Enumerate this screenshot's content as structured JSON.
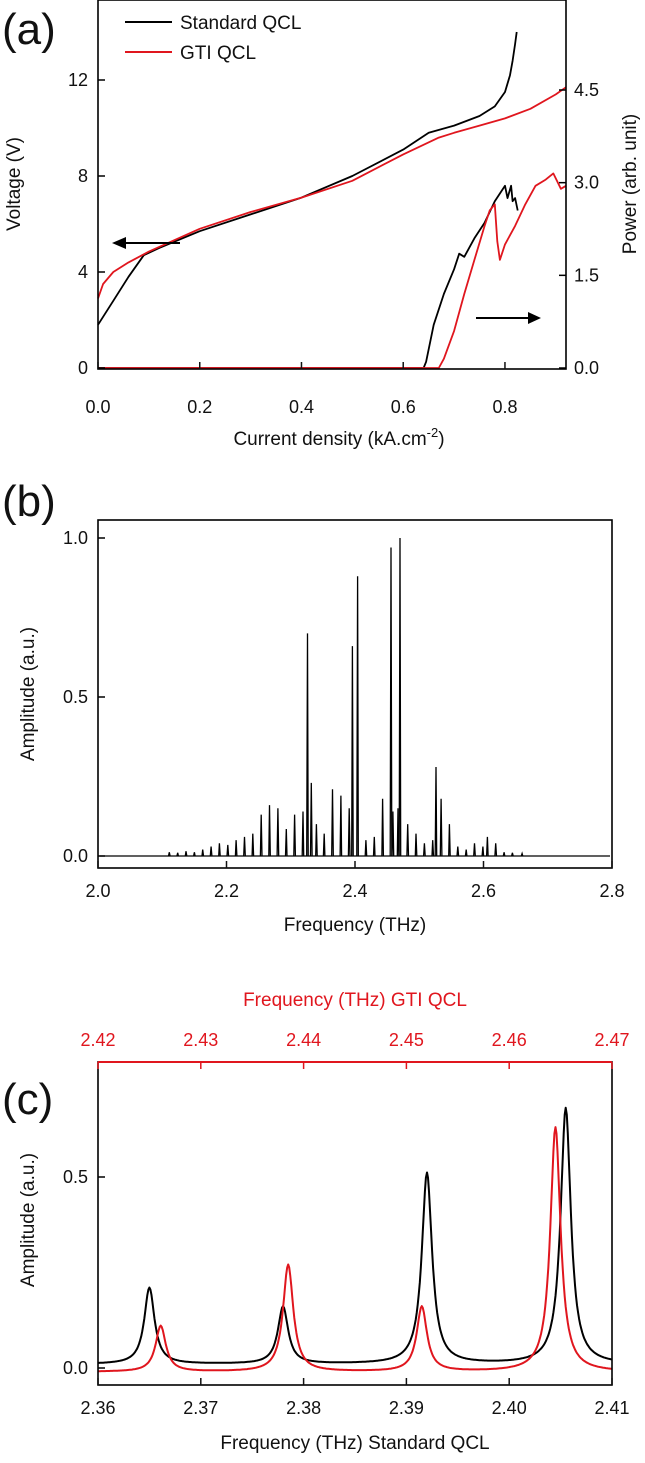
{
  "chart_data": [
    {
      "panel": "(a)",
      "type": "line",
      "xlabel": "Current density (kA.cm",
      "xlabel_sup": "-2",
      "xlabel_end": ")",
      "ylabel": "Voltage (V)",
      "ylabel_right": "Power (arb. unit)",
      "xlim": [
        0,
        0.92
      ],
      "ylim": [
        0,
        14
      ],
      "ylim_right": [
        0,
        5.55
      ],
      "xticks": [
        "0.0",
        "0.2",
        "0.4",
        "0.6",
        "0.8"
      ],
      "yticks": [
        "0",
        "4",
        "8",
        "12"
      ],
      "yticks_right": [
        "0.0",
        "1.5",
        "3.0",
        "4.5"
      ],
      "legend": {
        "position": "top-left",
        "entries": [
          "Standard QCL",
          "GTI QCL"
        ]
      },
      "series": [
        {
          "name": "Standard QCL",
          "axis": "left",
          "color": "#000000",
          "x": [
            0,
            0.03,
            0.06,
            0.09,
            0.12,
            0.2,
            0.3,
            0.4,
            0.5,
            0.6,
            0.65,
            0.7,
            0.75,
            0.78,
            0.8,
            0.81,
            0.815,
            0.82,
            0.823
          ],
          "y": [
            1.8,
            2.8,
            3.8,
            4.7,
            5.0,
            5.7,
            6.4,
            7.1,
            8.0,
            9.1,
            9.8,
            10.1,
            10.5,
            10.9,
            11.5,
            12.2,
            12.8,
            13.5,
            14
          ]
        },
        {
          "name": "GTI QCL",
          "axis": "left",
          "color": "#e0161e",
          "x": [
            0,
            0.01,
            0.03,
            0.06,
            0.1,
            0.2,
            0.3,
            0.4,
            0.5,
            0.6,
            0.67,
            0.7,
            0.75,
            0.8,
            0.85,
            0.9,
            0.92
          ],
          "y": [
            2.9,
            3.5,
            4.0,
            4.4,
            4.85,
            5.8,
            6.5,
            7.1,
            7.8,
            8.9,
            9.6,
            9.8,
            10.1,
            10.4,
            10.8,
            11.4,
            11.7
          ]
        },
        {
          "name": "Standard QCL",
          "axis": "right",
          "color": "#000000",
          "x": [
            0,
            0.64,
            0.645,
            0.66,
            0.68,
            0.7,
            0.71,
            0.72,
            0.74,
            0.76,
            0.78,
            0.8,
            0.805,
            0.812,
            0.815,
            0.82,
            0.825
          ],
          "y": [
            0,
            0,
            0.1,
            0.7,
            1.2,
            1.6,
            1.85,
            1.8,
            2.1,
            2.35,
            2.7,
            2.95,
            2.75,
            2.95,
            2.7,
            2.75,
            2.55
          ]
        },
        {
          "name": "GTI QCL",
          "axis": "right",
          "color": "#e0161e",
          "x": [
            0,
            0.67,
            0.68,
            0.7,
            0.72,
            0.74,
            0.76,
            0.77,
            0.775,
            0.78,
            0.785,
            0.79,
            0.8,
            0.82,
            0.84,
            0.86,
            0.88,
            0.895,
            0.91,
            0.92
          ],
          "y": [
            0,
            0,
            0.15,
            0.6,
            1.2,
            1.75,
            2.3,
            2.55,
            2.6,
            2.65,
            2.05,
            1.75,
            2.0,
            2.3,
            2.65,
            2.95,
            3.05,
            3.15,
            2.9,
            2.95
          ]
        }
      ]
    },
    {
      "panel": "(b)",
      "type": "line",
      "xlabel": "Frequency (THz)",
      "ylabel": "Amplitude (a.u.)",
      "xlim": [
        2.0,
        2.8
      ],
      "ylim": [
        -0.04,
        1.04
      ],
      "xticks": [
        "2.0",
        "2.2",
        "2.4",
        "2.6",
        "2.8"
      ],
      "yticks": [
        "0.0",
        "0.5",
        "1.0"
      ],
      "peak_width": 0.0012,
      "peaks": {
        "x": [
          2.111,
          2.124,
          2.137,
          2.15,
          2.163,
          2.176,
          2.189,
          2.202,
          2.215,
          2.228,
          2.241,
          2.254,
          2.267,
          2.28,
          2.293,
          2.306,
          2.319,
          2.326,
          2.332,
          2.34,
          2.352,
          2.365,
          2.378,
          2.391,
          2.396,
          2.404,
          2.417,
          2.43,
          2.443,
          2.456,
          2.459,
          2.467,
          2.47,
          2.482,
          2.495,
          2.508,
          2.521,
          2.526,
          2.534,
          2.547,
          2.56,
          2.573,
          2.586,
          2.599,
          2.606,
          2.619,
          2.632,
          2.645,
          2.66
        ],
        "y": [
          0.012,
          0.01,
          0.015,
          0.012,
          0.02,
          0.03,
          0.04,
          0.035,
          0.05,
          0.06,
          0.07,
          0.13,
          0.16,
          0.15,
          0.085,
          0.13,
          0.14,
          0.7,
          0.23,
          0.1,
          0.07,
          0.21,
          0.19,
          0.15,
          0.66,
          0.88,
          0.05,
          0.06,
          0.18,
          0.97,
          0.14,
          0.15,
          1.0,
          0.1,
          0.07,
          0.04,
          0.05,
          0.28,
          0.18,
          0.1,
          0.03,
          0.02,
          0.04,
          0.03,
          0.06,
          0.04,
          0.012,
          0.01,
          0.008
        ]
      }
    },
    {
      "panel": "(c)",
      "type": "line",
      "xlabel": "Frequency (THz) Standard QCL",
      "xlabel_top": "Frequency (THz) GTI QCL",
      "ylabel": "Amplitude (a.u.)",
      "xlim": [
        2.36,
        2.41
      ],
      "xlim_top": [
        2.42,
        2.47
      ],
      "ylim": [
        -0.04,
        0.82
      ],
      "xticks": [
        "2.36",
        "2.37",
        "2.38",
        "2.39",
        "2.40",
        "2.41"
      ],
      "xticks_top": [
        "2.42",
        "2.43",
        "2.44",
        "2.45",
        "2.46",
        "2.47"
      ],
      "yticks": [
        "0.0",
        "0.5"
      ],
      "series": [
        {
          "name": "Standard QCL",
          "axis": "bottom",
          "color": "#000000",
          "baseline": 0.01,
          "width": 0.0006,
          "peaks": {
            "x": [
              2.365,
              2.378,
              2.392,
              2.4055
            ],
            "y": [
              0.2,
              0.15,
              0.5,
              0.67
            ]
          }
        },
        {
          "name": "GTI QCL",
          "axis": "top",
          "color": "#e0161e",
          "baseline": -0.01,
          "width": 0.0006,
          "peaks": {
            "x": [
              2.4261,
              2.4385,
              2.4515,
              2.4645
            ],
            "y": [
              0.12,
              0.28,
              0.17,
              0.64
            ]
          }
        }
      ]
    }
  ]
}
